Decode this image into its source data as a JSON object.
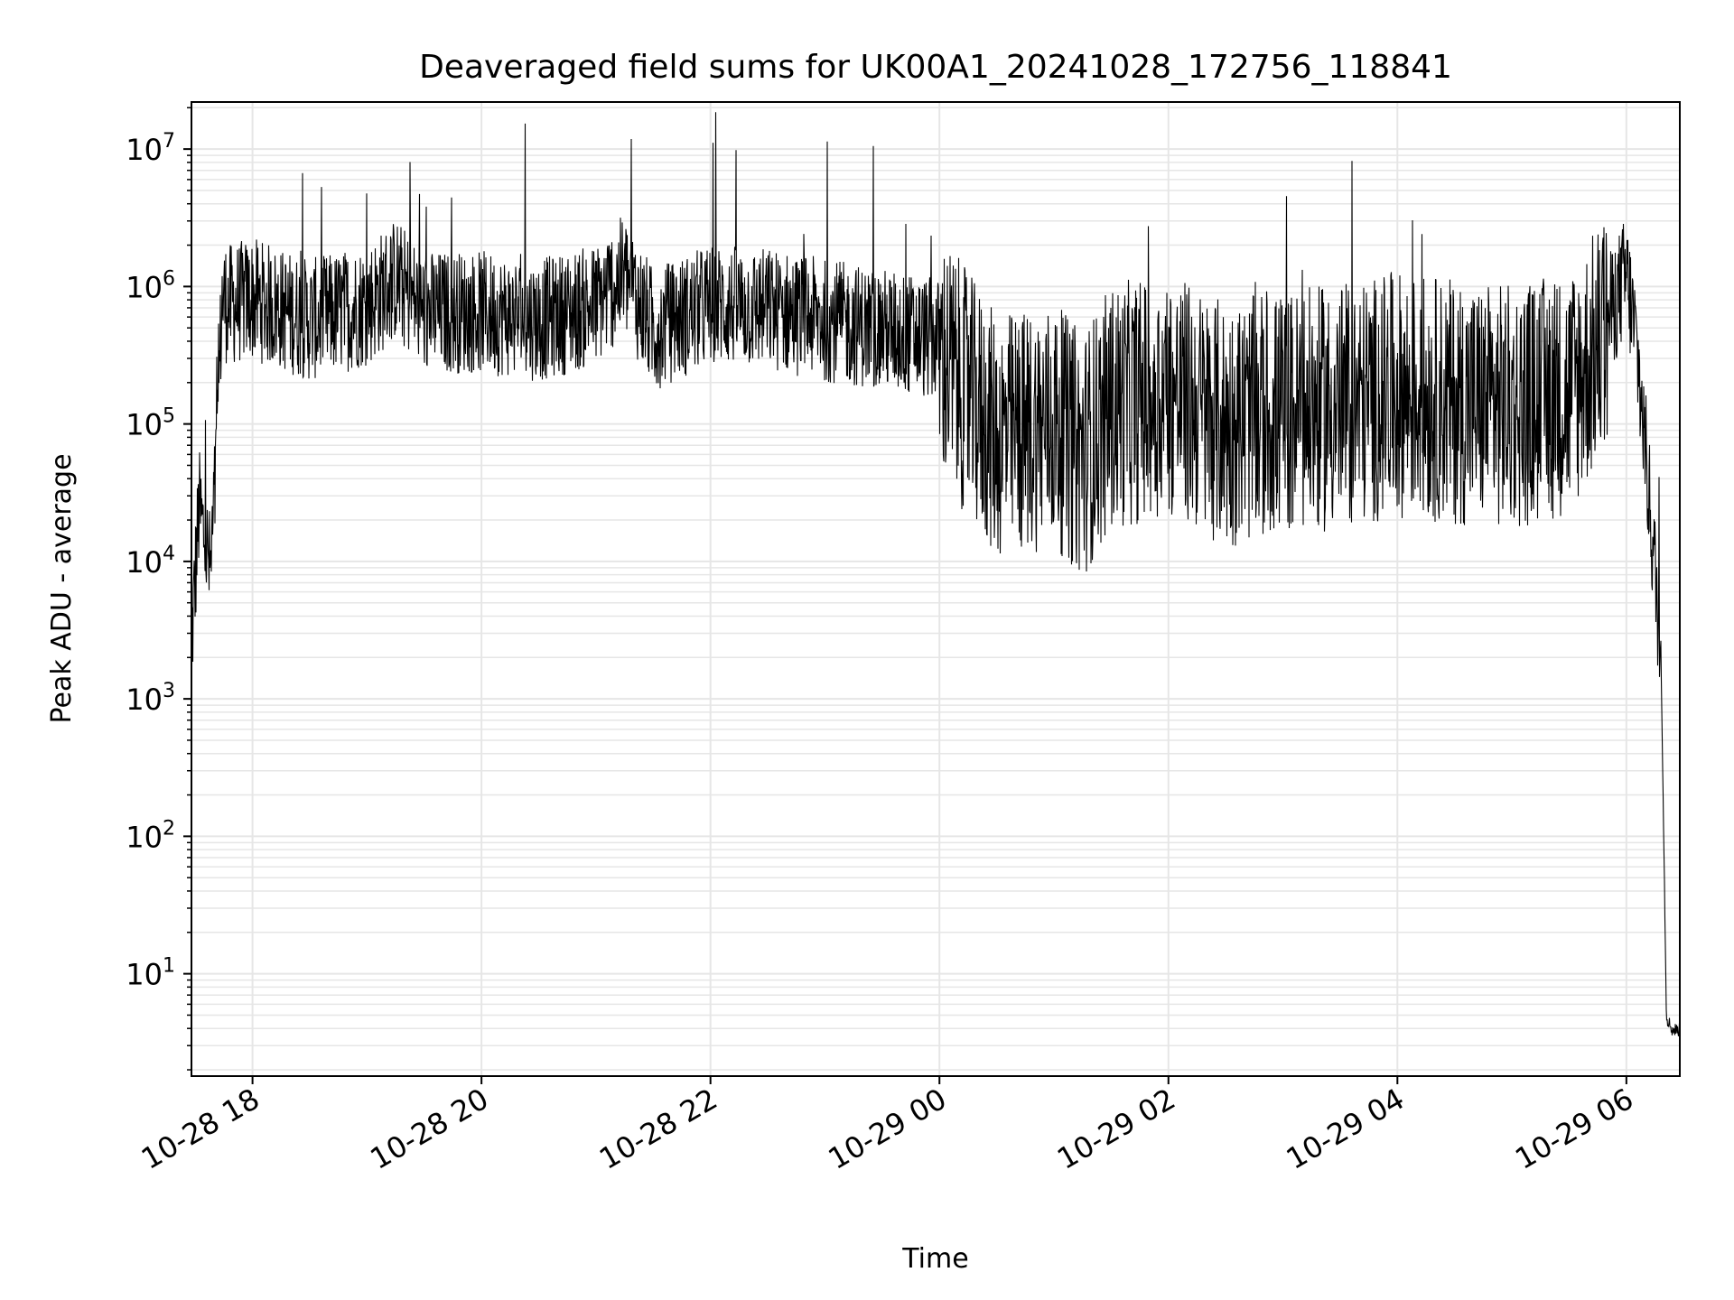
{
  "chart_data": {
    "type": "line",
    "title": "Deaveraged field sums for UK00A1_20241028_172756_118841",
    "xlabel": "Time",
    "ylabel": "Peak ADU - average",
    "yscale": "log",
    "xlim": [
      "2024-10-28 17:28",
      "2024-10-29 06:28"
    ],
    "ylim": [
      1.8,
      22000000
    ],
    "grid": true,
    "line_color": "#000000",
    "grid_color": "#e6e6e6",
    "x_ticks": [
      {
        "value": "2024-10-28 18:00",
        "label": "10-28 18"
      },
      {
        "value": "2024-10-28 20:00",
        "label": "10-28 20"
      },
      {
        "value": "2024-10-28 22:00",
        "label": "10-28 22"
      },
      {
        "value": "2024-10-29 00:00",
        "label": "10-29 00"
      },
      {
        "value": "2024-10-29 02:00",
        "label": "10-29 02"
      },
      {
        "value": "2024-10-29 04:00",
        "label": "10-29 04"
      },
      {
        "value": "2024-10-29 06:00",
        "label": "10-29 06"
      }
    ],
    "y_ticks": [
      {
        "value": 10,
        "base": "10",
        "exp": "1"
      },
      {
        "value": 100,
        "base": "10",
        "exp": "2"
      },
      {
        "value": 1000,
        "base": "10",
        "exp": "3"
      },
      {
        "value": 10000,
        "base": "10",
        "exp": "4"
      },
      {
        "value": 100000,
        "base": "10",
        "exp": "5"
      },
      {
        "value": 1000000,
        "base": "10",
        "exp": "6"
      },
      {
        "value": 10000000,
        "base": "10",
        "exp": "7"
      }
    ],
    "series": [
      {
        "x": [
          "2024-10-28 17:28",
          "2024-10-28 17:32",
          "2024-10-28 17:36",
          "2024-10-28 17:38",
          "2024-10-28 17:41",
          "2024-10-28 17:44",
          "2024-10-28 17:48",
          "2024-10-28 18:00",
          "2024-10-28 18:30",
          "2024-10-28 19:00",
          "2024-10-28 19:15",
          "2024-10-28 19:30",
          "2024-10-28 20:00",
          "2024-10-28 20:30",
          "2024-10-28 21:00",
          "2024-10-28 21:15",
          "2024-10-28 21:30",
          "2024-10-28 22:00",
          "2024-10-28 22:30",
          "2024-10-28 23:00",
          "2024-10-28 23:30",
          "2024-10-29 00:00",
          "2024-10-29 00:30",
          "2024-10-29 01:00",
          "2024-10-29 01:15",
          "2024-10-29 01:30",
          "2024-10-29 02:00",
          "2024-10-29 02:30",
          "2024-10-29 03:00",
          "2024-10-29 03:30",
          "2024-10-29 04:00",
          "2024-10-29 04:30",
          "2024-10-29 05:00",
          "2024-10-29 05:30",
          "2024-10-29 05:50",
          "2024-10-29 06:00",
          "2024-10-29 06:05",
          "2024-10-29 06:10",
          "2024-10-29 06:15",
          "2024-10-29 06:18",
          "2024-10-29 06:21",
          "2024-10-29 06:24",
          "2024-10-29 06:28"
        ],
        "values": [
          3000,
          30000,
          15000,
          10000,
          60000,
          1000000,
          900000,
          1000000,
          700000,
          900000,
          1400000,
          800000,
          800000,
          700000,
          900000,
          1500000,
          600000,
          900000,
          850000,
          700000,
          600000,
          500000,
          120000,
          150000,
          90000,
          200000,
          250000,
          150000,
          180000,
          200000,
          250000,
          220000,
          200000,
          250000,
          700000,
          1500000,
          500000,
          80000,
          10000,
          3000,
          5,
          4,
          4
        ]
      }
    ]
  }
}
